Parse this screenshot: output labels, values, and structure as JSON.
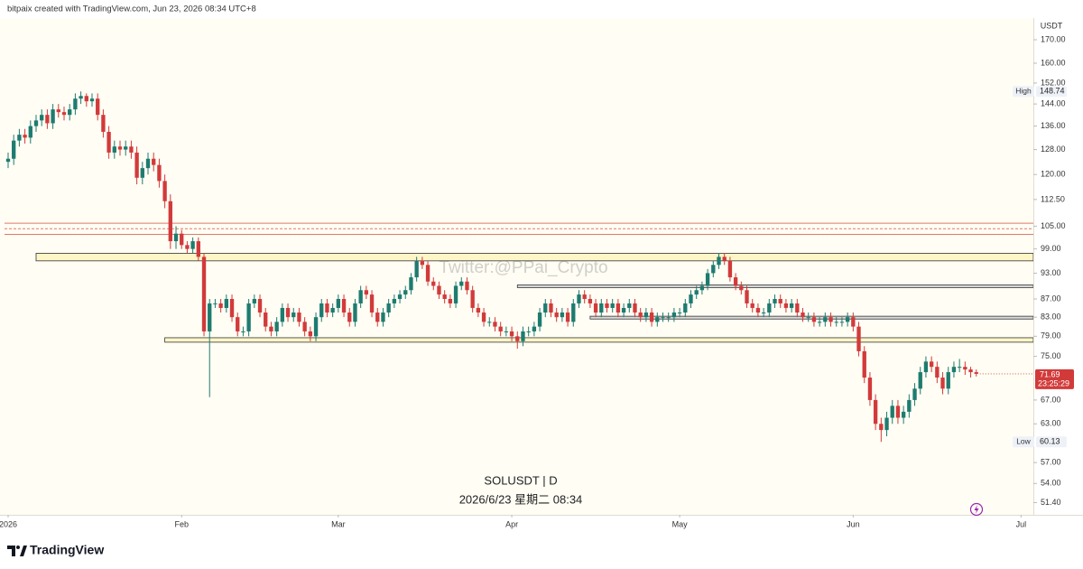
{
  "header": {
    "credit": "bitpaix created with TradingView.com, Jun 23, 2026 08:34 UTC+8"
  },
  "footer": {
    "brand": "TradingView"
  },
  "chart_data": {
    "type": "candlestick",
    "symbol": "SOLUSDT | D",
    "datetime": "2026/6/23 星期二 08:34",
    "watermark": "Twitter:@PPai_Crypto",
    "currency": "USDT",
    "high_label": "High",
    "low_label": "Low",
    "countdown": "23:25:29",
    "log_scale": true,
    "grid": false,
    "up_color": "#1e7b6f",
    "down_color": "#d23a3a",
    "xlim": [
      -1.45,
      183.2
    ],
    "xticks": [
      {
        "value": 0,
        "label": "2026"
      },
      {
        "value": 31,
        "label": "Feb"
      },
      {
        "value": 59,
        "label": "Mar"
      },
      {
        "value": 90,
        "label": "Apr"
      },
      {
        "value": 120,
        "label": "May"
      },
      {
        "value": 151,
        "label": "Jun"
      },
      {
        "value": 181,
        "label": "Jul"
      }
    ],
    "ylim": [
      49.8,
      179.8
    ],
    "yticks": [
      {
        "value": 170,
        "label": "170.00"
      },
      {
        "value": 160,
        "label": "160.00"
      },
      {
        "value": 152,
        "label": "152.00"
      },
      {
        "value": 144,
        "label": "144.00"
      },
      {
        "value": 136,
        "label": "136.00"
      },
      {
        "value": 128,
        "label": "128.00"
      },
      {
        "value": 120,
        "label": "120.00"
      },
      {
        "value": 112.5,
        "label": "112.50"
      },
      {
        "value": 105,
        "label": "105.00"
      },
      {
        "value": 99,
        "label": "99.00"
      },
      {
        "value": 93,
        "label": "93.00"
      },
      {
        "value": 87,
        "label": "87.00"
      },
      {
        "value": 83,
        "label": "83.00"
      },
      {
        "value": 79,
        "label": "79.00"
      },
      {
        "value": 75,
        "label": "75.00"
      },
      {
        "value": 67,
        "label": "67.00"
      },
      {
        "value": 63,
        "label": "63.00"
      },
      {
        "value": 57,
        "label": "57.00"
      },
      {
        "value": 54,
        "label": "54.00"
      },
      {
        "value": 51.4,
        "label": "51.40"
      }
    ],
    "lines": [
      {
        "value": 105.8,
        "color": "#e07a6a",
        "dash": false
      },
      {
        "value": 104.3,
        "color": "#e07a6a",
        "dash": true
      },
      {
        "value": 102.8,
        "color": "#e07a6a",
        "dash": false
      }
    ],
    "zones": [
      {
        "top": 97.9,
        "bottom": 96.0,
        "start": 5,
        "color": "#fff6c8"
      },
      {
        "top": 90.2,
        "bottom": 89.6,
        "start": 91,
        "color": "#d8d8d8"
      },
      {
        "top": 83.2,
        "bottom": 82.6,
        "start": 104,
        "color": "#d8d8d8"
      },
      {
        "top": 78.7,
        "bottom": 77.8,
        "start": 28,
        "color": "#fff6c8"
      }
    ],
    "x": [
      0,
      1,
      2,
      3,
      4,
      5,
      6,
      7,
      8,
      9,
      10,
      11,
      12,
      13,
      14,
      15,
      16,
      17,
      18,
      19,
      20,
      21,
      22,
      23,
      24,
      25,
      26,
      27,
      28,
      29,
      30,
      31,
      32,
      33,
      34,
      35,
      36,
      37,
      38,
      39,
      40,
      41,
      42,
      43,
      44,
      45,
      46,
      47,
      48,
      49,
      50,
      51,
      52,
      53,
      54,
      55,
      56,
      57,
      58,
      59,
      60,
      61,
      62,
      63,
      64,
      65,
      66,
      67,
      68,
      69,
      70,
      71,
      72,
      73,
      74,
      75,
      76,
      77,
      78,
      79,
      80,
      81,
      82,
      83,
      84,
      85,
      86,
      87,
      88,
      89,
      90,
      91,
      92,
      93,
      94,
      95,
      96,
      97,
      98,
      99,
      100,
      101,
      102,
      103,
      104,
      105,
      106,
      107,
      108,
      109,
      110,
      111,
      112,
      113,
      114,
      115,
      116,
      117,
      118,
      119,
      120,
      121,
      122,
      123,
      124,
      125,
      126,
      127,
      128,
      129,
      130,
      131,
      132,
      133,
      134,
      135,
      136,
      137,
      138,
      139,
      140,
      141,
      142,
      143,
      144,
      145,
      146,
      147,
      148,
      149,
      150,
      151,
      152,
      153,
      154,
      155,
      156,
      157,
      158,
      159,
      160,
      161,
      162,
      163,
      164,
      165,
      166,
      167,
      168,
      169,
      170,
      171,
      172,
      173
    ],
    "open": [
      124,
      125,
      131,
      133,
      132,
      136,
      138,
      140,
      137,
      142,
      141,
      140,
      142,
      146,
      147,
      145,
      146,
      140,
      134,
      127,
      129,
      128,
      129,
      127,
      119,
      122,
      125,
      123,
      118,
      112,
      101,
      103,
      100,
      99,
      101,
      97,
      80,
      86,
      86,
      85,
      87,
      83,
      80,
      80,
      86,
      87,
      84,
      81,
      80,
      82,
      85,
      83,
      84,
      82,
      80,
      79,
      83,
      86,
      84,
      85,
      87,
      84,
      82,
      86,
      89,
      88,
      84,
      82,
      84,
      86,
      87,
      88,
      89,
      92,
      96,
      95,
      91,
      90,
      88,
      87,
      86,
      90,
      91,
      89,
      85,
      84,
      82,
      82,
      81,
      80,
      80,
      79,
      78,
      80,
      80,
      81,
      84,
      86,
      84,
      83,
      84,
      82,
      86,
      88,
      87,
      86,
      84,
      86,
      85,
      86,
      84,
      85,
      86,
      84,
      83,
      84,
      82,
      83,
      83,
      83,
      84,
      84,
      86,
      88,
      89,
      90,
      93,
      95,
      97,
      96,
      92,
      90,
      89,
      86,
      85,
      84,
      84,
      86,
      87,
      86,
      85,
      86,
      84,
      83,
      83,
      82,
      82,
      83,
      82,
      82,
      82,
      83,
      81,
      76,
      71,
      67,
      63,
      62,
      64,
      66,
      64,
      65,
      67,
      69,
      72,
      74,
      73,
      71,
      69,
      72,
      73,
      73,
      72.5,
      72
    ],
    "high": [
      127,
      133,
      135,
      135,
      138,
      140,
      142,
      142,
      144,
      144,
      143,
      144,
      148,
      148.74,
      148,
      148,
      148,
      142,
      136,
      131,
      131,
      131,
      131,
      129,
      124,
      127,
      127,
      125,
      120,
      114,
      105,
      104,
      101,
      102,
      102,
      98,
      87,
      87,
      87,
      88,
      88,
      84,
      81,
      87,
      88,
      88,
      85,
      82,
      83,
      86,
      86,
      85,
      85,
      83,
      81,
      84,
      87,
      87,
      86,
      88,
      88,
      85,
      87,
      90,
      90,
      89,
      85,
      85,
      87,
      88,
      89,
      90,
      93,
      97,
      97,
      96,
      92,
      91,
      89,
      88,
      91,
      92,
      92,
      90,
      86,
      85,
      83,
      83,
      82,
      81,
      81,
      80,
      81,
      81,
      82,
      85,
      87,
      87,
      85,
      85,
      85,
      87,
      89,
      89,
      88,
      87,
      87,
      87,
      87,
      87,
      86,
      87,
      87,
      85,
      85,
      85,
      84,
      84,
      84,
      85,
      85,
      87,
      89,
      90,
      91,
      94,
      96,
      98,
      98,
      97,
      93,
      91,
      90,
      87,
      86,
      85,
      87,
      88,
      88,
      87,
      87,
      87,
      85,
      84,
      84,
      83,
      84,
      84,
      83,
      83,
      84,
      84,
      82,
      77,
      72,
      68,
      64,
      65,
      67,
      67,
      66,
      68,
      70,
      73,
      75,
      75,
      74,
      72,
      73,
      74,
      74.5,
      74,
      73,
      72.5
    ],
    "low": [
      122,
      123,
      129,
      130,
      130,
      134,
      136,
      135,
      135,
      139,
      138,
      138,
      140,
      144,
      143,
      143,
      138,
      132,
      125,
      125,
      126,
      126,
      125,
      117,
      117,
      120,
      121,
      116,
      110,
      99,
      99,
      99,
      98,
      98,
      96,
      79,
      67.5,
      85,
      84,
      84,
      82,
      79,
      79,
      79,
      85,
      83,
      80,
      79,
      79,
      81,
      82,
      82,
      81,
      79,
      78,
      78,
      82,
      83,
      83,
      84,
      83,
      81,
      81,
      85,
      87,
      83,
      81,
      81,
      83,
      85,
      86,
      87,
      88,
      91,
      94,
      90,
      89,
      87,
      86,
      85,
      85,
      89,
      88,
      84,
      83,
      81,
      81,
      80,
      79,
      79,
      78,
      76.5,
      77,
      79,
      79,
      80,
      83,
      83,
      82,
      82,
      81,
      81,
      85,
      86,
      85,
      83,
      83,
      84,
      84,
      83,
      83,
      84,
      83,
      82,
      82,
      81,
      81,
      82,
      82,
      82,
      83,
      83,
      85,
      87,
      88,
      89,
      92,
      94,
      95,
      91,
      89,
      88,
      85,
      84,
      83,
      83,
      83,
      85,
      85,
      84,
      84,
      83,
      82,
      82,
      81,
      81,
      81,
      81,
      81,
      81,
      81,
      80,
      75,
      70,
      66,
      62,
      60.13,
      61,
      63,
      63,
      63,
      64,
      66,
      68,
      71,
      72,
      70,
      68,
      68,
      71,
      72,
      71.5,
      71,
      71.2
    ],
    "close": [
      125,
      131,
      133,
      132,
      136,
      138,
      140,
      137,
      142,
      141,
      140,
      142,
      146,
      147,
      145,
      146,
      140,
      134,
      127,
      129,
      128,
      129,
      127,
      119,
      122,
      125,
      123,
      118,
      112,
      101,
      103,
      100,
      99,
      101,
      97,
      80,
      86,
      86,
      85,
      87,
      83,
      80,
      80,
      86,
      87,
      84,
      81,
      80,
      82,
      85,
      83,
      84,
      82,
      80,
      79,
      83,
      86,
      84,
      85,
      87,
      84,
      82,
      86,
      89,
      88,
      84,
      82,
      84,
      86,
      87,
      88,
      89,
      92,
      96,
      95,
      91,
      90,
      88,
      87,
      86,
      90,
      91,
      89,
      85,
      84,
      82,
      82,
      81,
      80,
      80,
      79,
      78,
      80,
      80,
      81,
      84,
      86,
      84,
      83,
      84,
      82,
      86,
      88,
      87,
      86,
      84,
      86,
      85,
      86,
      84,
      85,
      86,
      84,
      83,
      84,
      82,
      83,
      83,
      83,
      84,
      84,
      86,
      88,
      89,
      90,
      93,
      95,
      97,
      96,
      92,
      90,
      89,
      86,
      85,
      84,
      84,
      86,
      87,
      86,
      85,
      86,
      84,
      83,
      83,
      82,
      82,
      83,
      82,
      82,
      82,
      83,
      81,
      76,
      71,
      67,
      63,
      62,
      64,
      66,
      64,
      65,
      67,
      69,
      72,
      74,
      73,
      71,
      69,
      72,
      73,
      73,
      72.5,
      72,
      71.69
    ]
  }
}
